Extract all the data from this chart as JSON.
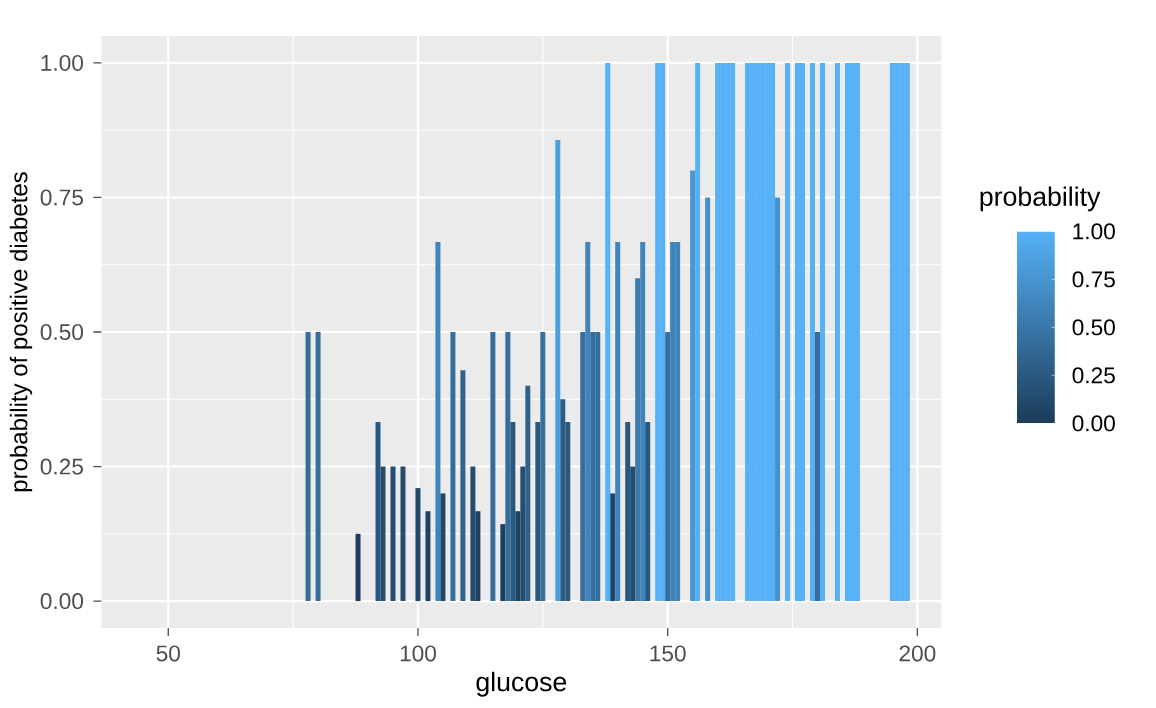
{
  "chart_data": {
    "type": "bar",
    "xlabel": "glucose",
    "ylabel": "probability of positive diabetes",
    "clabel": "probability",
    "x": [
      78,
      80,
      88,
      92,
      93,
      95,
      97,
      100,
      102,
      104,
      105,
      107,
      109,
      111,
      112,
      115,
      117,
      118,
      119,
      120,
      121,
      122,
      124,
      125,
      128,
      129,
      130,
      133,
      134,
      135,
      136,
      138,
      139,
      140,
      142,
      143,
      144,
      145,
      146,
      148,
      149,
      150,
      151,
      152,
      155,
      156,
      158,
      160,
      161,
      162,
      163,
      166,
      167,
      168,
      169,
      170,
      171,
      172,
      174,
      176,
      177,
      179,
      180,
      181,
      184,
      186,
      187,
      188,
      195,
      196,
      197,
      198
    ],
    "values": [
      0.5,
      0.5,
      0.125,
      0.333,
      0.25,
      0.25,
      0.25,
      0.21,
      0.167,
      0.667,
      0.2,
      0.5,
      0.429,
      0.25,
      0.167,
      0.5,
      0.143,
      0.5,
      0.333,
      0.167,
      0.25,
      0.4,
      0.333,
      0.5,
      0.857,
      0.375,
      0.333,
      0.5,
      0.667,
      0.5,
      0.5,
      1,
      0.2,
      0.667,
      0.333,
      0.25,
      0.6,
      0.667,
      0.333,
      1,
      1,
      0.5,
      0.667,
      0.667,
      0.8,
      1,
      0.75,
      1,
      1,
      1,
      1,
      1,
      1,
      1,
      1,
      1,
      1,
      0.75,
      1,
      1,
      1,
      1,
      0.5,
      1,
      1,
      1,
      1,
      1,
      1,
      1,
      1,
      1
    ],
    "colors": [
      "#356e9d",
      "#356e9d",
      "#1b3c5a",
      "#29587f",
      "#244d70",
      "#244d70",
      "#244d70",
      "#214769",
      "#1e4161",
      "#4084bb",
      "#204667",
      "#356e9d",
      "#306490",
      "#244d70",
      "#1e4161",
      "#356e9d",
      "#1d3e5d",
      "#356e9d",
      "#29587f",
      "#1e4161",
      "#244d70",
      "#2e618b",
      "#29587f",
      "#356e9d",
      "#4c9edd",
      "#2c5d87",
      "#29587f",
      "#356e9d",
      "#4084bb",
      "#356e9d",
      "#356e9d",
      "#56b1f7",
      "#204667",
      "#4084bb",
      "#29587f",
      "#244d70",
      "#3b7baf",
      "#4084bb",
      "#29587f",
      "#56b1f7",
      "#56b1f7",
      "#356e9d",
      "#4084bb",
      "#4084bb",
      "#4996d3",
      "#56b1f7",
      "#4590ca",
      "#56b1f7",
      "#56b1f7",
      "#56b1f7",
      "#56b1f7",
      "#56b1f7",
      "#56b1f7",
      "#56b1f7",
      "#56b1f7",
      "#56b1f7",
      "#56b1f7",
      "#4590ca",
      "#56b1f7",
      "#56b1f7",
      "#56b1f7",
      "#56b1f7",
      "#356e9d",
      "#56b1f7",
      "#56b1f7",
      "#56b1f7",
      "#56b1f7",
      "#56b1f7",
      "#56b1f7",
      "#56b1f7",
      "#56b1f7",
      "#56b1f7"
    ],
    "xlim": [
      36.6,
      204.8
    ],
    "ylim": [
      -0.05,
      1.05
    ],
    "xticks": [
      50,
      100,
      150,
      200
    ],
    "yticks": [
      {
        "value": 0,
        "label": "0.00"
      },
      {
        "value": 0.25,
        "label": "0.25"
      },
      {
        "value": 0.5,
        "label": "0.50"
      },
      {
        "value": 0.75,
        "label": "0.75"
      },
      {
        "value": 1,
        "label": "1.00"
      }
    ],
    "clim": [
      0,
      1
    ],
    "cticks": [
      {
        "value": 0,
        "label": "0.00"
      },
      {
        "value": 0.25,
        "label": "0.25"
      },
      {
        "value": 0.5,
        "label": "0.50"
      },
      {
        "value": 0.75,
        "label": "0.75"
      },
      {
        "value": 1,
        "label": "1.00"
      }
    ],
    "grid": true
  }
}
